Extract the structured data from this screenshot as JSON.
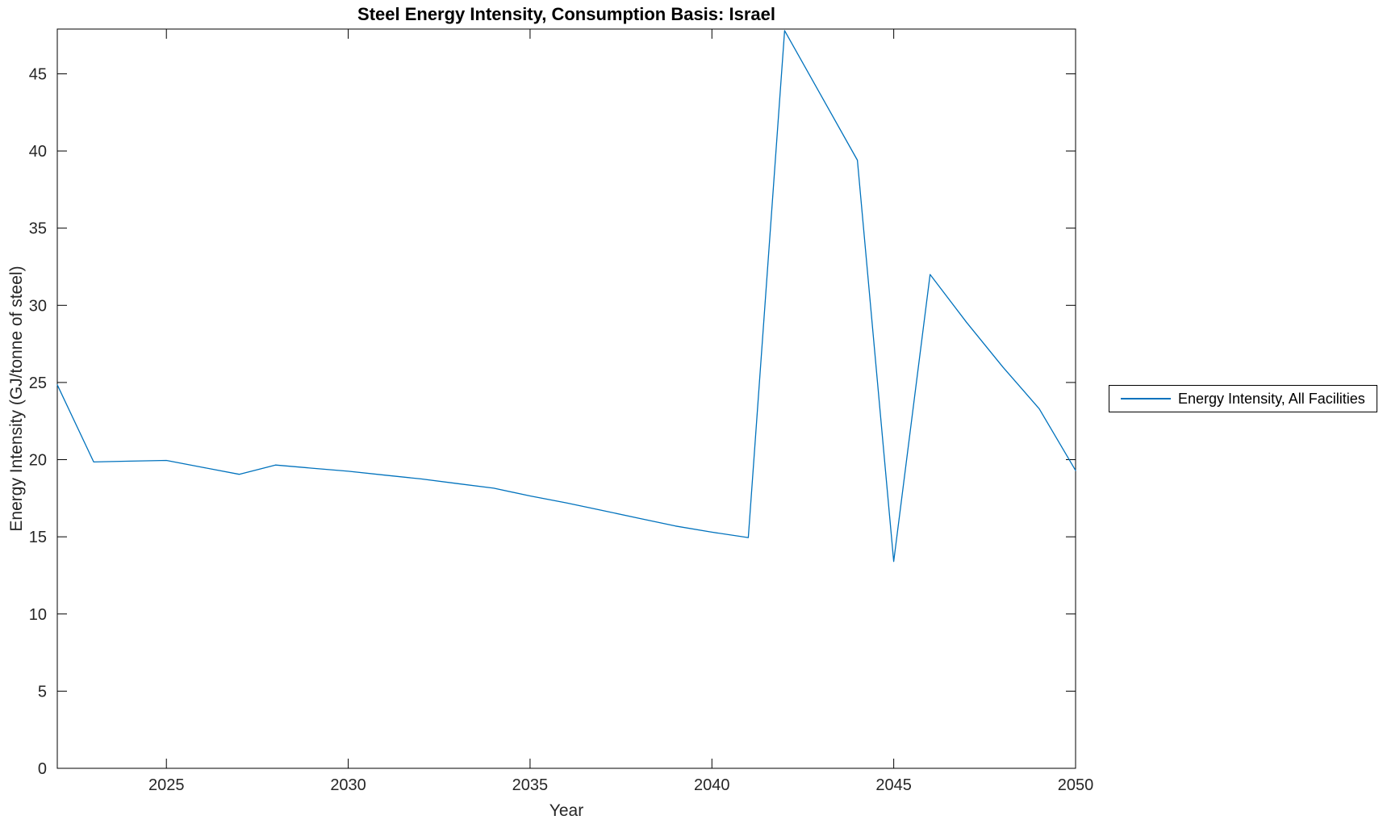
{
  "window": {
    "background": "#FFFFFF"
  },
  "colors": {
    "line": "#0072BD",
    "axis": "#000000",
    "tick_label": "#262626",
    "title": "#000000",
    "legend_border": "#000000"
  },
  "legend": {
    "entries": [
      {
        "label": "Energy Intensity, All Facilities",
        "color": "#0072BD"
      }
    ]
  },
  "chart_data": {
    "type": "line",
    "title": "Steel Energy Intensity, Consumption Basis: Israel",
    "xlabel": "Year",
    "ylabel": "Energy Intensity (GJ/tonne of steel)",
    "xlim": [
      2022,
      2050
    ],
    "ylim": [
      0,
      47.9
    ],
    "x_ticks": [
      2025,
      2030,
      2035,
      2040,
      2045,
      2050
    ],
    "y_ticks": [
      0,
      5,
      10,
      15,
      20,
      25,
      30,
      35,
      40,
      45
    ],
    "grid": false,
    "legend_position": "right-outside",
    "series": [
      {
        "name": "Energy Intensity, All Facilities",
        "color": "#0072BD",
        "x": [
          2022,
          2023,
          2024,
          2025,
          2026,
          2027,
          2028,
          2029,
          2030,
          2031,
          2032,
          2033,
          2034,
          2035,
          2036,
          2037,
          2038,
          2039,
          2040,
          2041,
          2042,
          2043,
          2044,
          2045,
          2046,
          2047,
          2048,
          2049,
          2050
        ],
        "y": [
          24.85,
          19.85,
          19.9,
          19.95,
          19.5,
          19.05,
          19.65,
          19.45,
          19.25,
          19.0,
          18.75,
          18.45,
          18.15,
          17.65,
          17.2,
          16.7,
          16.2,
          15.7,
          15.3,
          14.95,
          47.8,
          43.6,
          39.4,
          13.4,
          32.0,
          28.9,
          26.0,
          23.3,
          19.3
        ]
      }
    ]
  }
}
